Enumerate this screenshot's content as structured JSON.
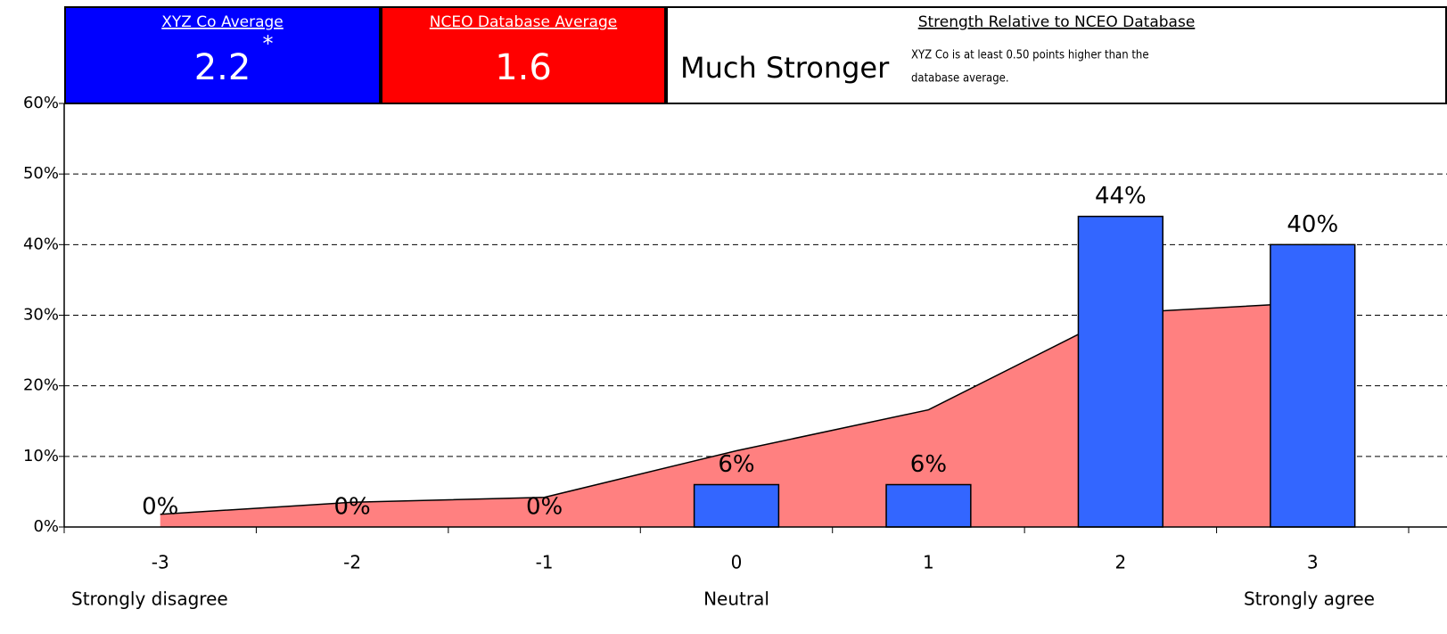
{
  "header": {
    "boxes": [
      {
        "title": "XYZ Co Average",
        "value": "2.2",
        "mark": "*",
        "color": "#0000ff"
      },
      {
        "title": "NCEO Database Average",
        "value": "1.6",
        "color": "#ff0000"
      },
      {
        "title": "Strength Relative to NCEO Database",
        "value": "Much Stronger",
        "note": [
          "XYZ Co is at least 0.50 points higher than the",
          "database average."
        ],
        "color": "#ffffff"
      }
    ]
  },
  "chart_data": {
    "type": "bar",
    "categories": [
      "-3",
      "-2",
      "-1",
      "0",
      "1",
      "2",
      "3"
    ],
    "category_descriptions": [
      "Strongly disagree",
      null,
      null,
      "Neutral",
      null,
      null,
      "Strongly agree"
    ],
    "series": [
      {
        "type": "bar",
        "color": "#3366ff",
        "values": [
          0,
          0,
          0,
          6,
          6,
          44,
          40
        ],
        "value_labels": [
          "0%",
          "0%",
          "0%",
          "6%",
          "6%",
          "44%",
          "40%"
        ]
      },
      {
        "type": "area",
        "color": "#ff8080",
        "values": [
          1.8,
          3.5,
          4.2,
          10.8,
          16.6,
          30.3,
          31.8
        ]
      }
    ],
    "ylim": [
      0,
      60
    ],
    "yticks": [
      {
        "value": 0,
        "label": "0%"
      },
      {
        "value": 10,
        "label": "10%"
      },
      {
        "value": 20,
        "label": "20%"
      },
      {
        "value": 30,
        "label": "30%"
      },
      {
        "value": 40,
        "label": "40%"
      },
      {
        "value": 50,
        "label": "50%"
      },
      {
        "value": 60,
        "label": "60%"
      }
    ],
    "grid": true
  }
}
